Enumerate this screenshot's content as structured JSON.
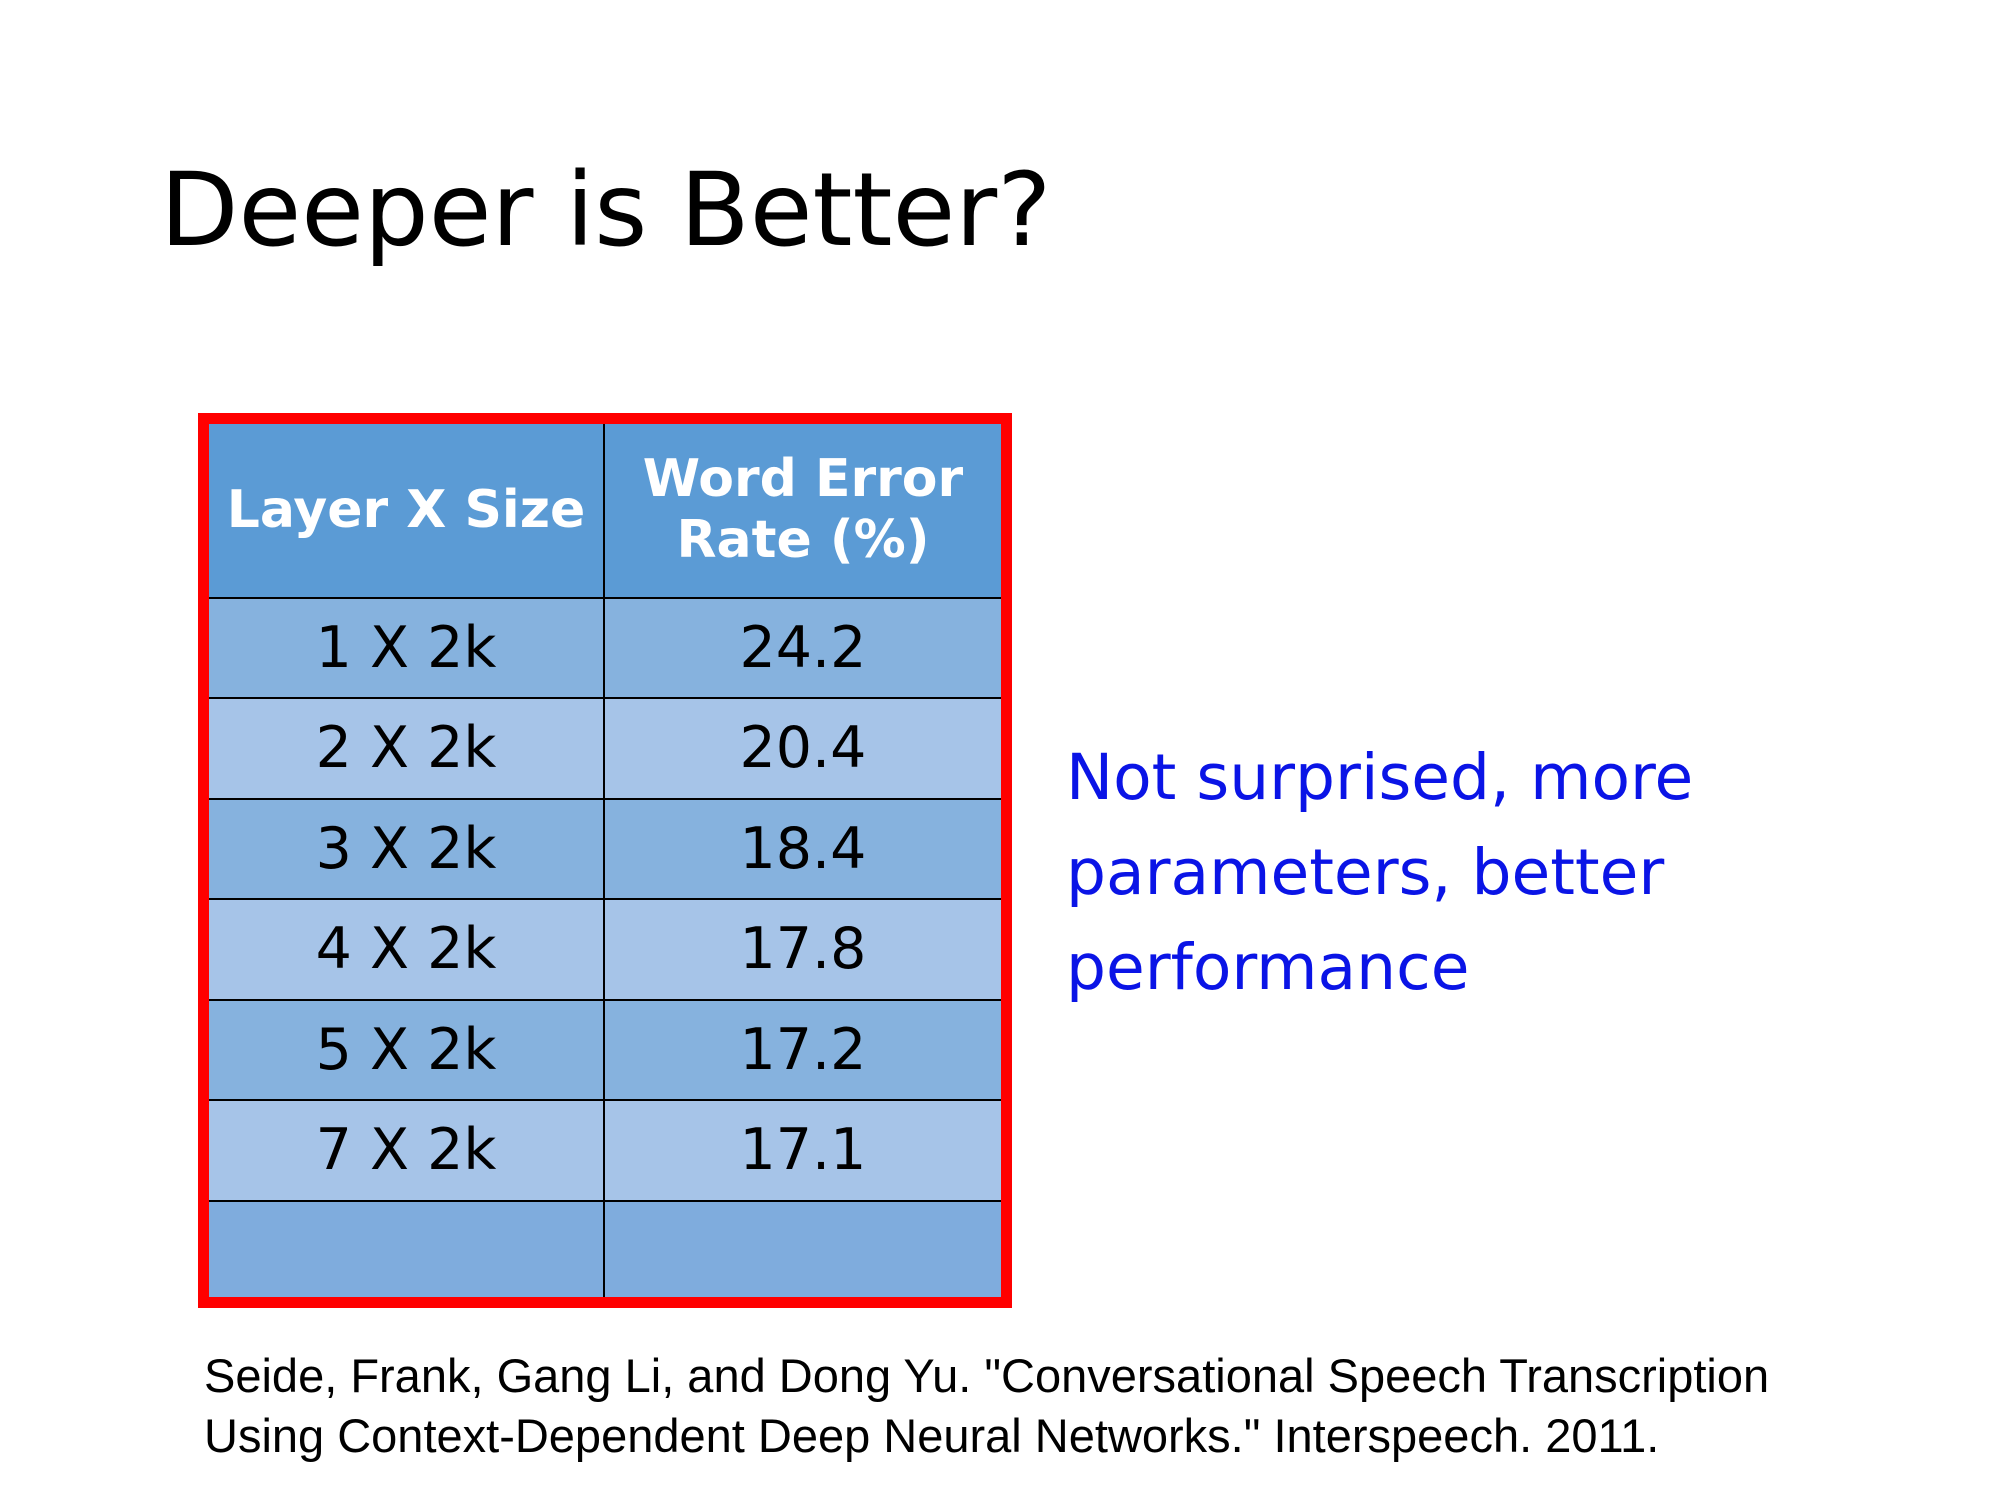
{
  "slide": {
    "title": "Deeper is Better?"
  },
  "table": {
    "headers": [
      "Layer X Size",
      "Word Error\nRate (%)"
    ],
    "header_lines": [
      [
        "Layer X Size"
      ],
      [
        "Word Error",
        "Rate (%)"
      ]
    ],
    "rows": [
      [
        "1 X 2k",
        "24.2"
      ],
      [
        "2 X 2k",
        "20.4"
      ],
      [
        "3 X 2k",
        "18.4"
      ],
      [
        "4 X 2k",
        "17.8"
      ],
      [
        "5 X 2k",
        "17.2"
      ],
      [
        "7 X 2k",
        "17.1"
      ],
      [
        "",
        ""
      ]
    ]
  },
  "callout": {
    "lines": [
      "Not surprised, more",
      "parameters, better",
      "performance"
    ]
  },
  "citation": {
    "lines": [
      "Seide, Frank, Gang Li, and Dong Yu. \"Conversational Speech Transcription",
      "Using Context-Dependent Deep Neural Networks.\" Interspeech. 2011."
    ]
  },
  "colors": {
    "frame_border": "#ff0000",
    "header_fill": "#5b9bd5",
    "row_fill_dark": "#86b2de",
    "row_fill_light": "#a6c4e8",
    "callout_text": "#0a14e6"
  }
}
